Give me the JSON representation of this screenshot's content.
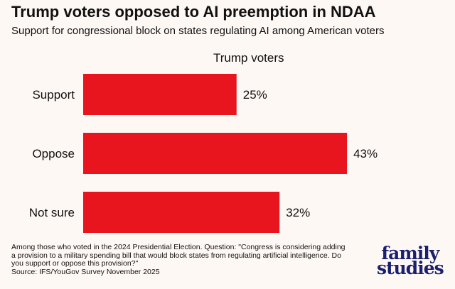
{
  "title": "Trump voters opposed to AI preemption in NDAA",
  "subtitle": "Support for congressional block on states regulating AI among American voters",
  "chart_data": {
    "type": "bar",
    "orientation": "horizontal",
    "series": [
      {
        "name": "Trump voters",
        "values": [
          25,
          43,
          32
        ]
      }
    ],
    "categories": [
      "Support",
      "Oppose",
      "Not sure"
    ],
    "data_labels": [
      "25%",
      "43%",
      "32%"
    ],
    "color": "#e8151f",
    "grid": false
  },
  "footnote": {
    "lines": [
      "Among those who voted in the 2024 Presidential Election. Question: \"Congress is considering adding a provision to a military spending bill that would block states from regulating artificial intelligence. Do you support or oppose this provision?\""
    ],
    "source": "Source: IFS/YouGov Survey November 2025"
  },
  "logo": {
    "line1": "family",
    "line2": "studies"
  }
}
